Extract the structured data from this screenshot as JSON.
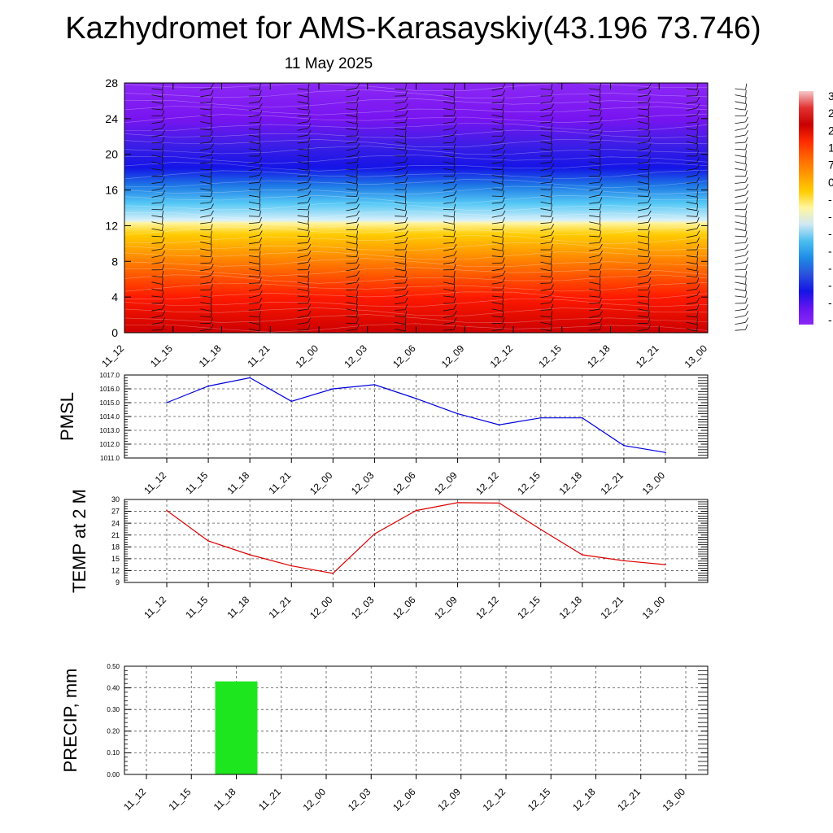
{
  "title": "Kazhydromet for AMS-Karasayskiy(43.196 73.746)",
  "subtitle": "11 May 2025",
  "colors": {
    "pmsl_line": "#0000dd",
    "temp_line": "#dd0000",
    "precip_bar": "#1ee61e",
    "grid": "#555555"
  },
  "colorbar": {
    "labels": [
      "3",
      "2",
      "2",
      "1",
      "7",
      "0",
      "-",
      "-",
      "-",
      "-",
      "-",
      "-",
      "-",
      "-"
    ],
    "colors": [
      "#f5c8c8",
      "#e23232",
      "#c80000",
      "#ff2a00",
      "#ff6600",
      "#ff9900",
      "#ffcc00",
      "#fff6a0",
      "#cfe8f5",
      "#4bbdf0",
      "#1e8ce6",
      "#2a50dc",
      "#1414e6",
      "#6414f0",
      "#8c28f5"
    ]
  },
  "chart_data": [
    {
      "type": "heatmap",
      "title": "",
      "xlabel": "",
      "ylabel": "",
      "categories": [
        "11_12",
        "11_15",
        "11_18",
        "11_21",
        "12_00",
        "12_03",
        "12_06",
        "12_09",
        "12_12",
        "12_15",
        "12_18",
        "12_21",
        "13_00"
      ],
      "ylim": [
        0,
        28
      ],
      "yticks": [
        "0",
        "4",
        "8",
        "12",
        "16",
        "20",
        "24",
        "28"
      ],
      "color_scale": [
        {
          "level": 0,
          "color": "#cc0000"
        },
        {
          "level": 4,
          "color": "#ff1a00"
        },
        {
          "level": 8,
          "color": "#ff8000"
        },
        {
          "level": 11,
          "color": "#ffcc00"
        },
        {
          "level": 12.3,
          "color": "#fff5a0"
        },
        {
          "level": 12.6,
          "color": "#d8f0fa"
        },
        {
          "level": 14.5,
          "color": "#55c8f5"
        },
        {
          "level": 16.5,
          "color": "#1e78e6"
        },
        {
          "level": 18.5,
          "color": "#1414e6"
        },
        {
          "level": 21,
          "color": "#3c1ee6"
        },
        {
          "level": 24,
          "color": "#7814f0"
        },
        {
          "level": 28,
          "color": "#8c28f5"
        }
      ],
      "wind_barbs": true
    },
    {
      "type": "line",
      "ylabel": "PMSL",
      "categories": [
        "11_12",
        "11_15",
        "11_18",
        "11_21",
        "12_00",
        "12_03",
        "12_06",
        "12_09",
        "12_12",
        "12_15",
        "12_18",
        "12_21",
        "13_00"
      ],
      "series": [
        {
          "values": [
            1015.0,
            1016.2,
            1016.8,
            1015.1,
            1016.0,
            1016.3,
            1015.3,
            1014.2,
            1013.4,
            1013.9,
            1013.9,
            1011.9,
            1011.4
          ]
        }
      ],
      "ylim": [
        1011,
        1017
      ],
      "yticks": [
        "1011.0",
        "1012.0",
        "1013.0",
        "1014.0",
        "1015.0",
        "1016.0",
        "1017.0"
      ],
      "grid": true
    },
    {
      "type": "line",
      "ylabel": "TEMP at 2 M",
      "categories": [
        "11_12",
        "11_15",
        "11_18",
        "11_21",
        "12_00",
        "12_03",
        "12_06",
        "12_09",
        "12_12",
        "12_15",
        "12_18",
        "12_21",
        "13_00"
      ],
      "series": [
        {
          "values": [
            27.2,
            19.5,
            16.0,
            13.2,
            11.3,
            21.3,
            27.2,
            29.2,
            29.1,
            22.4,
            16.0,
            14.5,
            13.5
          ]
        }
      ],
      "ylim": [
        9,
        30
      ],
      "yticks": [
        "9",
        "12",
        "15",
        "18",
        "21",
        "24",
        "27",
        "30"
      ],
      "grid": true
    },
    {
      "type": "bar",
      "ylabel": "PRECIP, mm",
      "categories": [
        "11_12",
        "11_15",
        "11_18",
        "11_21",
        "12_00",
        "12_03",
        "12_06",
        "12_09",
        "12_12",
        "12_15",
        "12_18",
        "12_21",
        "13_00"
      ],
      "values": [
        0,
        0,
        0.43,
        0,
        0,
        0,
        0,
        0,
        0,
        0,
        0,
        0,
        0
      ],
      "ylim": [
        0,
        0.5
      ],
      "yticks": [
        "0.00",
        "0.10",
        "0.20",
        "0.30",
        "0.40",
        "0.50"
      ],
      "grid": true
    }
  ]
}
